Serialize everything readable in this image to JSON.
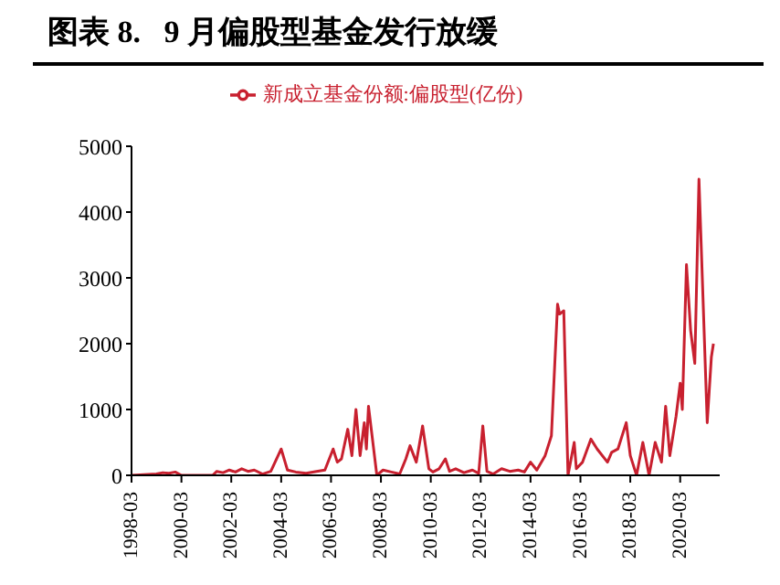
{
  "chart_data": {
    "type": "line",
    "title": "图表 8.   9 月偏股型基金发行放缓",
    "legend": "top",
    "x": [
      "1998-03",
      "1998-09",
      "1999-03",
      "1999-06",
      "1999-09",
      "1999-12",
      "2000-03",
      "2001-06",
      "2001-08",
      "2001-11",
      "2002-02",
      "2002-05",
      "2002-08",
      "2002-11",
      "2003-02",
      "2003-06",
      "2003-10",
      "2004-03",
      "2004-06",
      "2004-10",
      "2005-03",
      "2005-08",
      "2005-12",
      "2006-04",
      "2006-06",
      "2006-08",
      "2006-11",
      "2007-01",
      "2007-03",
      "2007-05",
      "2007-07",
      "2007-08",
      "2007-09",
      "2008-01",
      "2008-04",
      "2008-08",
      "2008-12",
      "2009-03",
      "2009-05",
      "2009-08",
      "2009-11",
      "2010-02",
      "2010-04",
      "2010-07",
      "2010-10",
      "2010-12",
      "2011-03",
      "2011-07",
      "2011-11",
      "2012-02",
      "2012-04",
      "2012-06",
      "2012-09",
      "2013-01",
      "2013-05",
      "2013-09",
      "2013-12",
      "2014-03",
      "2014-06",
      "2014-10",
      "2015-01",
      "2015-04",
      "2015-05",
      "2015-07",
      "2015-09",
      "2015-12",
      "2016-01",
      "2016-04",
      "2016-08",
      "2016-11",
      "2017-04",
      "2017-06",
      "2017-09",
      "2018-01",
      "2018-03",
      "2018-06",
      "2018-09",
      "2018-12",
      "2019-03",
      "2019-06",
      "2019-08",
      "2019-10",
      "2020-01",
      "2020-03",
      "2020-04",
      "2020-06",
      "2020-08",
      "2020-10",
      "2020-12",
      "2021-04",
      "2021-06",
      "2021-07"
    ],
    "series": [
      {
        "name": "新成立基金份额:偏股型(亿份)",
        "color": "#c8202f",
        "values": [
          0,
          10,
          20,
          40,
          30,
          50,
          0,
          0,
          60,
          40,
          80,
          50,
          100,
          60,
          80,
          20,
          60,
          400,
          80,
          50,
          30,
          60,
          80,
          400,
          200,
          250,
          700,
          300,
          1000,
          300,
          800,
          400,
          1050,
          0,
          80,
          50,
          20,
          250,
          450,
          200,
          750,
          100,
          50,
          100,
          250,
          60,
          100,
          40,
          80,
          30,
          750,
          60,
          20,
          100,
          60,
          80,
          50,
          200,
          80,
          300,
          600,
          2600,
          2450,
          2500,
          0,
          500,
          100,
          200,
          550,
          400,
          200,
          350,
          400,
          800,
          300,
          0,
          500,
          0,
          500,
          200,
          1050,
          300,
          900,
          1400,
          1000,
          3200,
          2200,
          1700,
          4500,
          800,
          1800,
          2000
        ]
      }
    ],
    "xlim": [
      "1998-03",
      "2021-10"
    ],
    "xticks": [
      "1998-03",
      "2000-03",
      "2002-03",
      "2004-03",
      "2006-03",
      "2008-03",
      "2010-03",
      "2012-03",
      "2014-03",
      "2016-03",
      "2018-03",
      "2020-03"
    ],
    "ylim": [
      0,
      5000
    ],
    "yticks": [
      0,
      1000,
      2000,
      3000,
      4000,
      5000
    ]
  }
}
